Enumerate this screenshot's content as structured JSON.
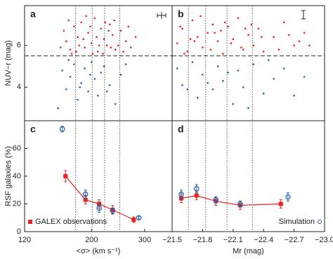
{
  "chart_data": [
    {
      "type": "scatter",
      "label": "a",
      "ylabel": "NUV−r (mag)",
      "xscale": "log",
      "xlim": [
        120,
        370
      ],
      "ylim": [
        2.4,
        7.9
      ],
      "yticks": [
        4,
        6
      ],
      "hline": 5.5,
      "vlines": [
        177,
        201,
        221,
        248
      ],
      "series": [
        {
          "color": "#e8231f",
          "x": [
            165,
            170,
            175,
            180,
            185,
            190,
            195,
            200,
            205,
            210,
            215,
            220,
            225,
            230,
            235,
            240,
            250,
            260,
            270,
            280,
            172,
            182,
            192,
            198,
            208,
            218,
            228,
            238,
            245,
            255,
            265,
            158,
            162,
            168,
            178,
            188,
            202,
            212,
            222,
            232
          ],
          "values": [
            6.2,
            5.8,
            6.9,
            6.4,
            7.1,
            5.9,
            6.6,
            6.1,
            7.3,
            5.7,
            6.8,
            6.3,
            6.0,
            7.0,
            6.5,
            5.8,
            6.7,
            6.2,
            5.9,
            6.4,
            5.6,
            6.0,
            7.4,
            6.9,
            6.4,
            5.6,
            6.7,
            7.2,
            6.0,
            5.7,
            6.9,
            5.9,
            6.7,
            7.2,
            5.7,
            6.3,
            5.6,
            6.0,
            7.1,
            5.9
          ]
        },
        {
          "color": "#1f5fb4",
          "x": [
            160,
            165,
            170,
            175,
            180,
            185,
            190,
            195,
            200,
            205,
            210,
            215,
            220,
            230,
            240,
            250,
            155,
            168,
            183,
            198,
            225,
            260
          ],
          "values": [
            4.8,
            3.9,
            4.5,
            5.1,
            3.4,
            4.2,
            4.9,
            3.8,
            5.2,
            4.4,
            3.6,
            4.7,
            5.0,
            4.1,
            3.2,
            4.6,
            3.0,
            5.3,
            4.0,
            4.6,
            3.8,
            5.1
          ]
        }
      ]
    },
    {
      "type": "scatter",
      "label": "b",
      "xlim": [
        -21.5,
        -23.0
      ],
      "ylim": [
        2.4,
        7.9
      ],
      "hline": 5.5,
      "vlines": [
        -21.66,
        -21.83,
        -22.04,
        -22.29
      ],
      "series": [
        {
          "color": "#e8231f",
          "x": [
            -21.55,
            -21.6,
            -21.65,
            -21.7,
            -21.75,
            -21.8,
            -21.85,
            -21.9,
            -21.95,
            -22.0,
            -22.05,
            -22.1,
            -22.15,
            -22.2,
            -22.25,
            -22.3,
            -22.35,
            -22.4,
            -22.5,
            -22.6,
            -22.7,
            -22.8,
            -21.58,
            -21.68,
            -21.78,
            -21.88,
            -21.98,
            -22.08,
            -22.18,
            -22.28,
            -22.38,
            -22.55,
            -22.65,
            -22.75,
            -22.85,
            -21.62,
            -21.72,
            -21.92,
            -22.02,
            -22.22
          ],
          "values": [
            6.1,
            6.8,
            5.7,
            7.2,
            6.4,
            5.9,
            6.6,
            7.0,
            6.2,
            5.6,
            6.9,
            6.3,
            7.3,
            5.8,
            6.5,
            6.0,
            6.8,
            5.7,
            6.4,
            7.1,
            6.0,
            6.6,
            6.9,
            6.3,
            7.4,
            5.8,
            6.7,
            6.1,
            5.9,
            7.0,
            6.4,
            5.8,
            6.5,
            6.2,
            6.0,
            5.6,
            6.2,
            6.6,
            7.1,
            6.8
          ]
        },
        {
          "color": "#1f5fb4",
          "x": [
            -21.55,
            -21.6,
            -21.7,
            -21.75,
            -21.8,
            -21.9,
            -21.95,
            -22.0,
            -22.1,
            -22.15,
            -22.2,
            -22.3,
            -22.4,
            -22.5,
            -22.6,
            -22.7,
            -21.65,
            -21.85,
            -22.05,
            -22.25,
            -22.45,
            -22.8
          ],
          "values": [
            4.9,
            4.1,
            5.2,
            3.5,
            4.6,
            3.9,
            5.0,
            4.3,
            3.2,
            4.8,
            4.0,
            5.1,
            3.7,
            4.4,
            4.9,
            3.6,
            3.9,
            4.2,
            4.7,
            3.0,
            5.3,
            4.5
          ]
        }
      ]
    },
    {
      "type": "line",
      "label": "c",
      "ylabel": "RSF galaxies (%)",
      "xlabel": "<σ> (km s⁻¹)",
      "xscale": "log",
      "xlim": [
        120,
        370
      ],
      "ylim": [
        0,
        80
      ],
      "xticks": [
        120,
        200,
        300
      ],
      "yticks": [
        0,
        20,
        40,
        60
      ],
      "vlines": [
        177,
        201,
        221,
        248
      ],
      "legend": "lower left",
      "series": [
        {
          "name": "GALEX observations",
          "color": "#e8231f",
          "marker": "square",
          "in_legend": true,
          "x": [
            164,
            191,
            212,
            235,
            276
          ],
          "values": [
            40,
            23,
            20,
            15.7,
            8.6
          ],
          "errors": [
            4,
            3,
            3,
            3,
            2
          ]
        },
        {
          "name": "Simulation",
          "color": "#1f5fb4",
          "marker": "circle",
          "in_legend": false,
          "x": [
            160,
            191,
            212,
            235,
            287
          ],
          "values": [
            74,
            27,
            17,
            15,
            10
          ],
          "errors": [
            2,
            3,
            3,
            2,
            1
          ]
        }
      ]
    },
    {
      "type": "line",
      "label": "d",
      "xlabel": "Mr (mag)",
      "xlim": [
        -21.5,
        -23.0
      ],
      "ylim": [
        0,
        80
      ],
      "xticks": [
        {
          "value": -21.5,
          "label": "−21.5"
        },
        {
          "value": -21.8,
          "label": "−21.8"
        },
        {
          "value": -22.1,
          "label": "−22.1"
        },
        {
          "value": -22.4,
          "label": "−22.4"
        },
        {
          "value": -22.7,
          "label": "−22.7"
        },
        {
          "value": -23.0,
          "label": "−23.0"
        }
      ],
      "vlines": [
        -21.66,
        -21.83,
        -22.04,
        -22.29
      ],
      "legend": "lower right",
      "series": [
        {
          "name": "GALEX observations",
          "color": "#e8231f",
          "marker": "square",
          "in_legend": false,
          "x": [
            -21.59,
            -21.74,
            -21.93,
            -22.17,
            -22.57
          ],
          "values": [
            24,
            26,
            22,
            19,
            20
          ],
          "errors": [
            3,
            3,
            3,
            3,
            3
          ]
        },
        {
          "name": "Simulation",
          "color": "#1f5fb4",
          "marker": "circle",
          "in_legend": true,
          "x": [
            -21.59,
            -21.74,
            -21.93,
            -22.17,
            -22.64
          ],
          "values": [
            27,
            31,
            23,
            20,
            25
          ],
          "errors": [
            3,
            3,
            2,
            2,
            3
          ]
        }
      ]
    }
  ]
}
